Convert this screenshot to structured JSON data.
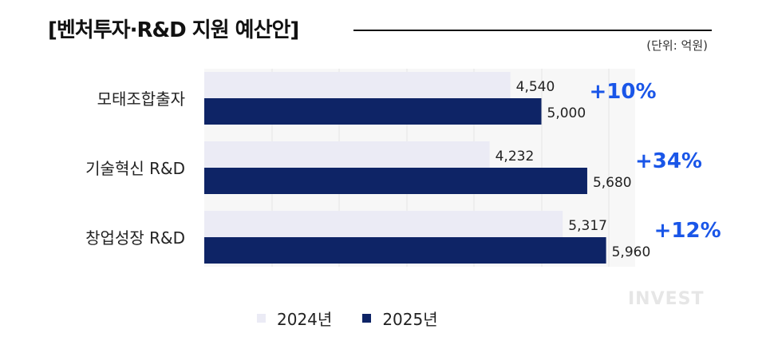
{
  "title": "[벤처투자·R&D 지원 예산안]",
  "unit": "(단위: 억원)",
  "watermark": "INVEST",
  "colors": {
    "y2024": "#ebebf5",
    "y2025": "#0e2466",
    "pct": "#1a56e8"
  },
  "chart_data": {
    "type": "bar",
    "orientation": "horizontal",
    "categories": [
      "모태조합출자",
      "기술혁신 R&D",
      "창업성장 R&D"
    ],
    "series": [
      {
        "name": "2024년",
        "values": [
          4540,
          4232,
          5317
        ],
        "labels": [
          "4,540",
          "4,232",
          "5,317"
        ]
      },
      {
        "name": "2025년",
        "values": [
          5000,
          5680,
          5960
        ],
        "labels": [
          "5,000",
          "5,680",
          "5,960"
        ]
      }
    ],
    "annotations": [
      "+10%",
      "+34%",
      "+12%"
    ],
    "xlim": [
      0,
      7000
    ],
    "grid": true,
    "legend_position": "bottom"
  }
}
